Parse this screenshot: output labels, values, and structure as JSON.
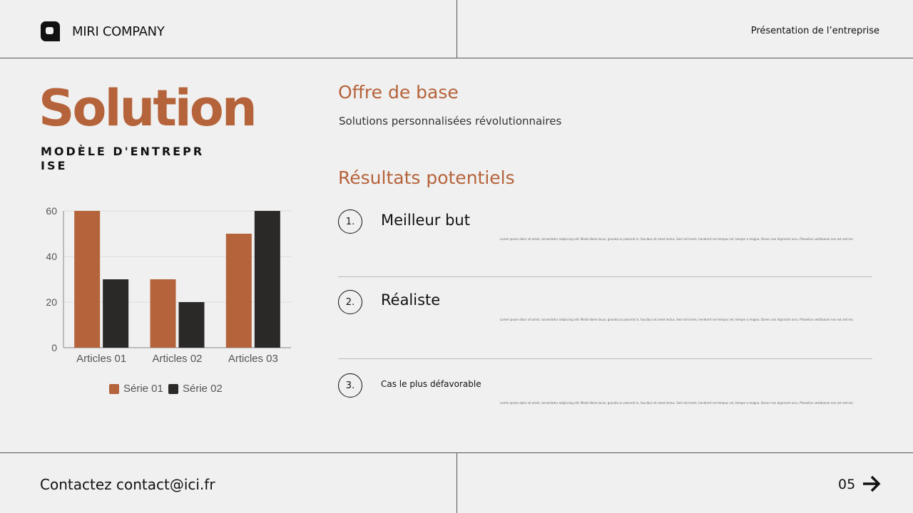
{
  "header": {
    "company": "MIRI COMPANY",
    "logo_icon": "logo-icon",
    "presentation": "Présentation de l’entreprise"
  },
  "left": {
    "title": "Solution",
    "subtitle": "MODÈLE D'ENTREPRISE"
  },
  "offer": {
    "heading": "Offre de base",
    "description": "Solutions personnalisées révolutionnaires"
  },
  "results": {
    "heading": "Résultats potentiels",
    "items": [
      {
        "num": "1.",
        "title": "Meilleur but",
        "text": "Lorem ipsum dolor sit amet, consectetur adipiscing elit. Morbi libero lacus, gravida ac placerat in, faucibus sit amet lectus. Sed nisl lorem, hendrerit vel tempus vel, tempor a magna. Donec non dignissim arcu. Phasellus vestibulum non est sed maximus."
      },
      {
        "num": "2.",
        "title": "Réaliste",
        "text": "Lorem ipsum dolor sit amet, consectetur adipiscing elit. Morbi libero lacus, gravida ac placerat in, faucibus sit amet lectus. Sed nisl lorem, hendrerit vel tempus vel, tempor a magna. Donec non dignissim arcu. Phasellus vestibulum non est sed maximus."
      },
      {
        "num": "3.",
        "title": "Cas le plus défavorable",
        "text": "Lorem ipsum dolor sit amet, consectetur adipiscing elit. Morbi libero lacus, gravida ac placerat in, faucibus sit amet lectus. Sed nisl lorem, hendrerit vel tempus vel, tempor a magna. Donec non dignissim arcu. Phasellus vestibulum non est sed maximus."
      }
    ]
  },
  "footer": {
    "contact": "Contactez contact@ici.fr",
    "page": "05",
    "arrow_icon": "arrow-right-icon"
  },
  "chart_data": {
    "type": "bar",
    "categories": [
      "Articles 01",
      "Articles 02",
      "Articles 03"
    ],
    "series": [
      {
        "name": "Série 01",
        "values": [
          60,
          30,
          50
        ],
        "color": "#b5633a"
      },
      {
        "name": "Série 02",
        "values": [
          30,
          20,
          60
        ],
        "color": "#2b2828"
      }
    ],
    "ylim": [
      0,
      60
    ],
    "yticks": [
      0,
      20,
      40,
      60
    ],
    "grid": true,
    "legend": "bottom"
  }
}
